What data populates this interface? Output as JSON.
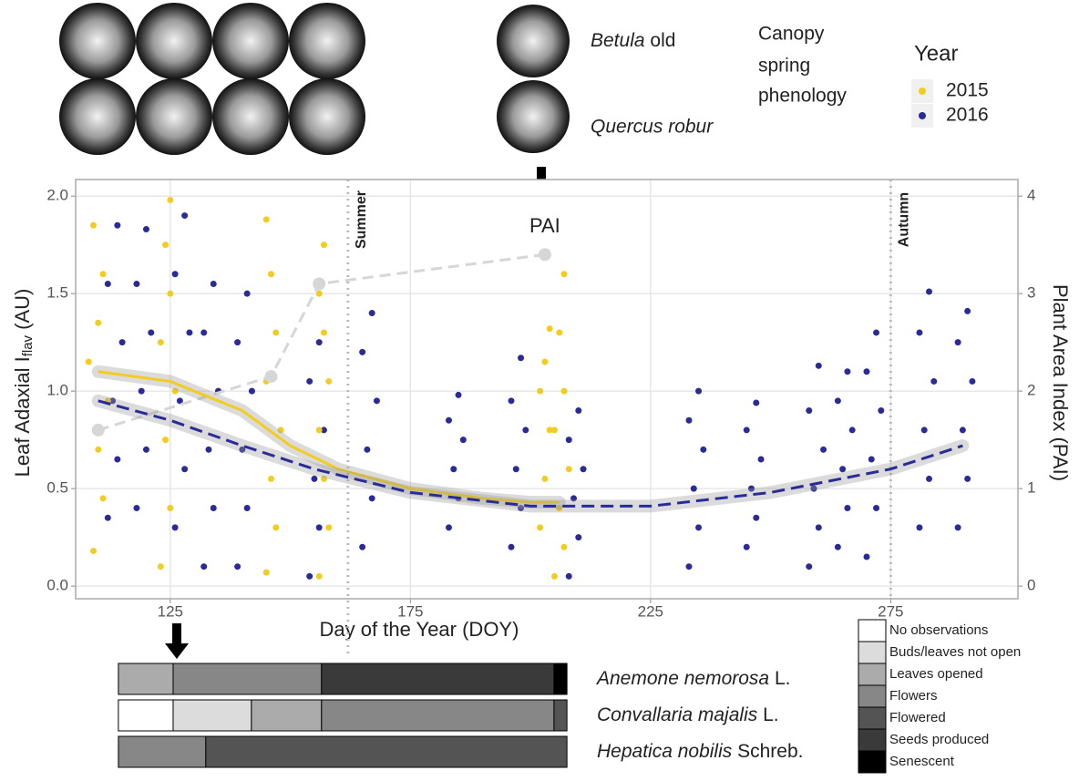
{
  "chart_data": {
    "type": "scatter",
    "xlabel": "Day of the Year (DOY)",
    "ylabel": {
      "main": "Leaf Adaxial I",
      "sub": "flav",
      "unit": "(AU)"
    },
    "y2label": "Plant Area Index (PAI)",
    "xlim": [
      105.3,
      301.5
    ],
    "ylim": [
      -0.065,
      2.085
    ],
    "y2lim": [
      -0.13,
      4.17
    ],
    "xticks": [
      125,
      175,
      225,
      275
    ],
    "yticks": [
      {
        "value": 0,
        "label": "0.0"
      },
      {
        "value": 0.5,
        "label": "0.5"
      },
      {
        "value": 1,
        "label": "1.0"
      },
      {
        "value": 1.5,
        "label": "1.5"
      },
      {
        "value": 2,
        "label": "2.0"
      }
    ],
    "y2ticks": [
      0,
      1,
      2,
      3,
      4
    ],
    "grid": true,
    "legend_title": "Year",
    "series": [
      {
        "name": "2015",
        "color": "#f2cd1f",
        "x": [
          109,
          111,
          110,
          112,
          108,
          110,
          111,
          109,
          123,
          125,
          124,
          126,
          123,
          125,
          124,
          125,
          145,
          147,
          146,
          148,
          145,
          147,
          146,
          145,
          156,
          158,
          157,
          156,
          158,
          157,
          156,
          157,
          202,
          203,
          204,
          202,
          203,
          204,
          205,
          207,
          206,
          208,
          205,
          207,
          206,
          207
        ],
        "values": [
          0.18,
          0.45,
          0.7,
          0.95,
          1.15,
          1.35,
          1.6,
          1.85,
          0.1,
          0.4,
          0.75,
          1.0,
          1.25,
          1.5,
          1.75,
          1.98,
          0.07,
          0.3,
          0.55,
          0.8,
          1.05,
          1.3,
          1.6,
          1.88,
          0.05,
          0.3,
          0.55,
          0.8,
          1.05,
          1.3,
          1.5,
          1.75,
          0.3,
          0.55,
          0.8,
          1.0,
          1.15,
          1.32,
          0.05,
          0.2,
          0.4,
          0.6,
          0.8,
          1.0,
          1.3,
          1.6
        ],
        "fit_x": [
          110,
          125,
          140,
          150,
          160,
          175,
          190,
          200,
          206
        ],
        "fit_y": [
          1.1,
          1.05,
          0.9,
          0.72,
          0.6,
          0.5,
          0.45,
          0.43,
          0.43
        ],
        "dashed": false
      },
      {
        "name": "2016",
        "color": "#2b2b98",
        "x": [
          112,
          114,
          113,
          115,
          112,
          114,
          118,
          120,
          119,
          121,
          118,
          120,
          126,
          128,
          127,
          129,
          126,
          128,
          132,
          134,
          133,
          135,
          132,
          134,
          139,
          141,
          140,
          142,
          139,
          141,
          154,
          156,
          155,
          157,
          154,
          156,
          165,
          167,
          166,
          168,
          165,
          167,
          183,
          185,
          184,
          186,
          183,
          185,
          196,
          198,
          197,
          199,
          196,
          198,
          208,
          210,
          209,
          211,
          208,
          210,
          233,
          235,
          234,
          236,
          233,
          235,
          245,
          247,
          246,
          248,
          245,
          247,
          258,
          260,
          259,
          261,
          258,
          260,
          264,
          266,
          265,
          267,
          264,
          266,
          270,
          272,
          271,
          273,
          270,
          272,
          281,
          283,
          282,
          284,
          281,
          283,
          289,
          291,
          290,
          292,
          289,
          291
        ],
        "values": [
          0.35,
          0.65,
          0.95,
          1.25,
          1.55,
          1.85,
          0.4,
          0.7,
          1.0,
          1.3,
          1.55,
          1.83,
          0.3,
          0.6,
          0.95,
          1.3,
          1.6,
          1.9,
          0.1,
          0.4,
          0.7,
          1.0,
          1.3,
          1.55,
          0.1,
          0.4,
          0.7,
          1.0,
          1.25,
          1.5,
          0.05,
          0.3,
          0.55,
          0.8,
          1.05,
          1.25,
          0.2,
          0.45,
          0.7,
          0.95,
          1.2,
          1.4,
          0.3,
          0.45,
          0.6,
          0.75,
          0.85,
          0.98,
          0.2,
          0.4,
          0.6,
          0.8,
          0.95,
          1.17,
          0.05,
          0.25,
          0.45,
          0.6,
          0.75,
          0.9,
          0.1,
          0.3,
          0.5,
          0.7,
          0.85,
          1.0,
          0.2,
          0.35,
          0.5,
          0.65,
          0.8,
          0.94,
          0.1,
          0.3,
          0.5,
          0.7,
          0.9,
          1.13,
          0.2,
          0.4,
          0.6,
          0.8,
          0.95,
          1.1,
          0.15,
          0.4,
          0.65,
          0.9,
          1.1,
          1.3,
          0.3,
          0.55,
          0.8,
          1.05,
          1.3,
          1.51,
          0.3,
          0.55,
          0.8,
          1.05,
          1.25,
          1.41
        ],
        "fit_x": [
          110,
          125,
          140,
          155,
          175,
          200,
          225,
          250,
          275,
          290
        ],
        "fit_y": [
          0.95,
          0.85,
          0.72,
          0.6,
          0.48,
          0.41,
          0.41,
          0.48,
          0.6,
          0.72
        ],
        "dashed": true
      }
    ],
    "pai": {
      "label": "PAI",
      "color": "#d6d6d6",
      "axis": "y2",
      "x": [
        110,
        146,
        156,
        203
      ],
      "values": [
        1.6,
        2.15,
        3.1,
        3.4
      ]
    },
    "annotations": [
      {
        "x": 162,
        "text": "Summer"
      },
      {
        "x": 275,
        "text": "Autumn"
      }
    ]
  },
  "images": {
    "captions": [
      {
        "genus": "Betula",
        "rest": "old"
      },
      {
        "name": "Quercus robur"
      }
    ],
    "canopy": [
      "Canopy",
      "spring",
      "phenology"
    ]
  },
  "phenology": {
    "stages": [
      {
        "label": "No observations",
        "color": "#ffffff"
      },
      {
        "label": "Buds/leaves not open",
        "color": "#dcdcdc"
      },
      {
        "label": "Leaves opened",
        "color": "#ababab"
      },
      {
        "label": "Flowers",
        "color": "#878787"
      },
      {
        "label": "Flowered",
        "color": "#545454"
      },
      {
        "label": "Seeds produced",
        "color": "#3a3a3a"
      },
      {
        "label": "Senescent",
        "color": "#000000"
      }
    ],
    "species": [
      {
        "name": "Anemone nemorosa",
        "authority": "L.",
        "segments": [
          {
            "stage": 2,
            "start": 114.2,
            "end": 125.6
          },
          {
            "stage": 3,
            "start": 125.6,
            "end": 156.5
          },
          {
            "stage": 5,
            "start": 156.5,
            "end": 204.9
          },
          {
            "stage": 6,
            "start": 204.9,
            "end": 207.6
          }
        ]
      },
      {
        "name": "Convallaria majalis",
        "authority": "L.",
        "segments": [
          {
            "stage": 0,
            "start": 114.2,
            "end": 125.6
          },
          {
            "stage": 1,
            "start": 125.6,
            "end": 141.9
          },
          {
            "stage": 2,
            "start": 141.9,
            "end": 156.5
          },
          {
            "stage": 3,
            "start": 156.5,
            "end": 204.9
          },
          {
            "stage": 4,
            "start": 204.9,
            "end": 207.6
          }
        ]
      },
      {
        "name": "Hepatica nobilis",
        "authority": "Schreb.",
        "segments": [
          {
            "stage": 3,
            "start": 114.2,
            "end": 132.4
          },
          {
            "stage": 4,
            "start": 132.4,
            "end": 207.6
          }
        ]
      }
    ]
  }
}
